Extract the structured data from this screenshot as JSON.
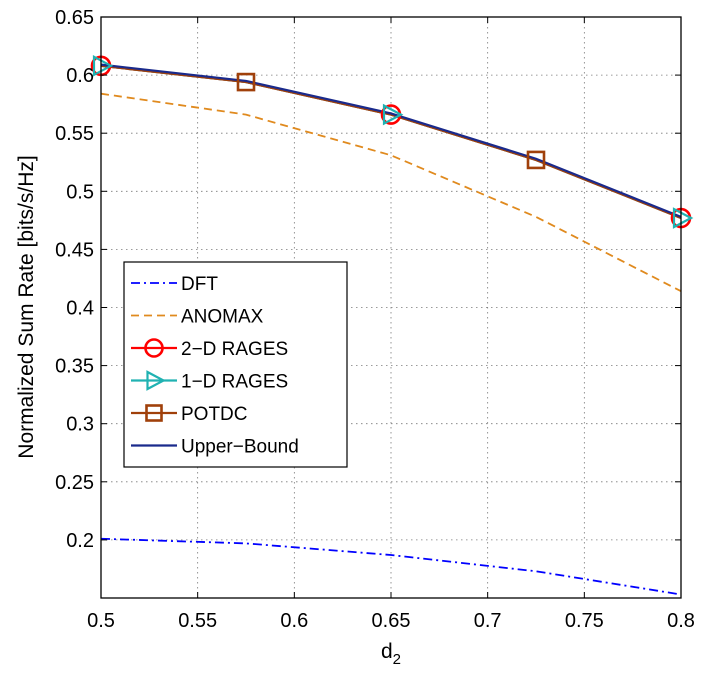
{
  "chart_data": {
    "type": "line",
    "xlabel": "d",
    "xlabel_sub": "2",
    "ylabel": "Normalized Sum Rate [bits/s/Hz]",
    "xlim": [
      0.5,
      0.8
    ],
    "ylim": [
      0.15,
      0.65
    ],
    "grid": true,
    "legend_placement": "center-left",
    "x_ticks": [
      0.5,
      0.55,
      0.6,
      0.65,
      0.7,
      0.75,
      0.8
    ],
    "x_tick_labels": [
      "0.5",
      "0.55",
      "0.6",
      "0.65",
      "0.7",
      "0.75",
      "0.8"
    ],
    "y_ticks": [
      0.2,
      0.25,
      0.3,
      0.35,
      0.4,
      0.45,
      0.5,
      0.55,
      0.6,
      0.65
    ],
    "y_tick_labels": [
      "0.2",
      "0.25",
      "0.3",
      "0.35",
      "0.4",
      "0.45",
      "0.5",
      "0.55",
      "0.6",
      "0.65"
    ],
    "series": [
      {
        "name": "DFT",
        "color": "#0000ff",
        "dash": "dashdot",
        "marker": "none",
        "points": [
          [
            0.5,
            0.201
          ],
          [
            0.575,
            0.197
          ],
          [
            0.65,
            0.187
          ],
          [
            0.725,
            0.173
          ],
          [
            0.8,
            0.153
          ]
        ]
      },
      {
        "name": "ANOMAX",
        "color": "#e08a1e",
        "dash": "dashed",
        "marker": "none",
        "points": [
          [
            0.5,
            0.584
          ],
          [
            0.575,
            0.566
          ],
          [
            0.65,
            0.531
          ],
          [
            0.725,
            0.478
          ],
          [
            0.8,
            0.414
          ]
        ]
      },
      {
        "name": "2−D RAGES",
        "color": "#ff0000",
        "dash": "solid",
        "marker": "circle",
        "points": [
          [
            0.5,
            0.608
          ],
          [
            0.575,
            0.594
          ],
          [
            0.65,
            0.566
          ],
          [
            0.725,
            0.527
          ],
          [
            0.8,
            0.477
          ]
        ],
        "marker_points": [
          [
            0.5,
            0.608
          ],
          [
            0.65,
            0.566
          ],
          [
            0.8,
            0.477
          ]
        ]
      },
      {
        "name": "1−D RAGES",
        "color": "#20b2b2",
        "dash": "solid",
        "marker": "triangle-right",
        "points": [
          [
            0.5,
            0.608
          ],
          [
            0.575,
            0.594
          ],
          [
            0.65,
            0.566
          ],
          [
            0.725,
            0.527
          ],
          [
            0.8,
            0.477
          ]
        ],
        "marker_points": [
          [
            0.5,
            0.608
          ],
          [
            0.65,
            0.566
          ],
          [
            0.8,
            0.477
          ]
        ]
      },
      {
        "name": "POTDC",
        "color": "#a0400a",
        "dash": "solid",
        "marker": "square",
        "points": [
          [
            0.5,
            0.608
          ],
          [
            0.575,
            0.594
          ],
          [
            0.65,
            0.566
          ],
          [
            0.725,
            0.527
          ],
          [
            0.8,
            0.477
          ]
        ],
        "marker_points": [
          [
            0.575,
            0.594
          ],
          [
            0.725,
            0.527
          ]
        ]
      },
      {
        "name": "Upper−Bound",
        "color": "#1a2a8c",
        "dash": "solid",
        "marker": "none",
        "points": [
          [
            0.5,
            0.609
          ],
          [
            0.575,
            0.595
          ],
          [
            0.65,
            0.567
          ],
          [
            0.725,
            0.528
          ],
          [
            0.8,
            0.478
          ]
        ]
      }
    ]
  }
}
